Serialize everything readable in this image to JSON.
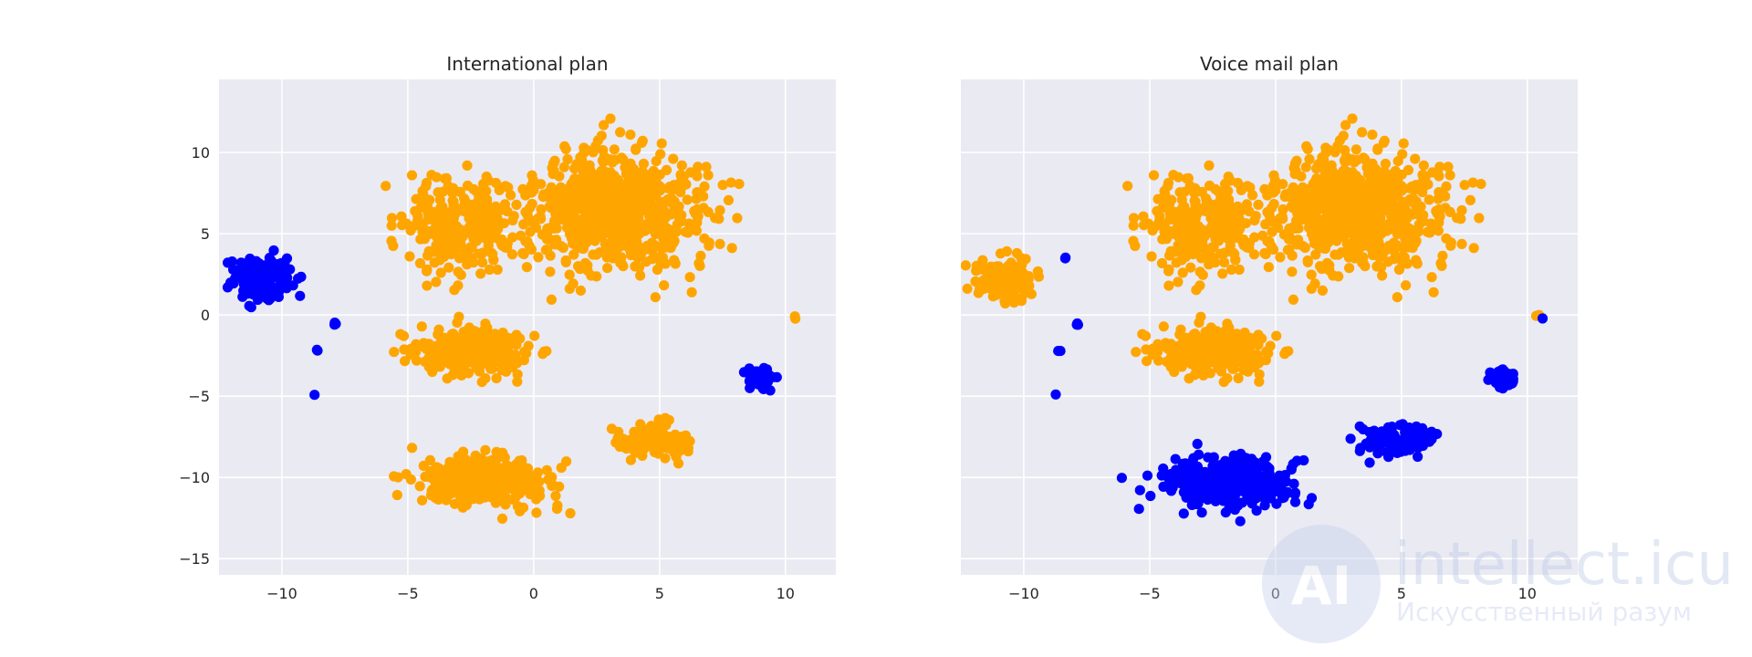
{
  "chart_data": [
    {
      "type": "scatter",
      "title": "International plan",
      "xlim": [
        -12.5,
        12.0
      ],
      "ylim": [
        -16.0,
        14.5
      ],
      "xticks": [
        -10,
        -5,
        0,
        5,
        10
      ],
      "yticks": [
        -15,
        -10,
        -5,
        0,
        5,
        10
      ],
      "xtick_labels": [
        "−10",
        "−5",
        "0",
        "5",
        "10"
      ],
      "ytick_labels": [
        "−15",
        "−10",
        "−5",
        "0",
        "5",
        "10"
      ],
      "grid": true,
      "legend": "none",
      "series": [
        {
          "color": "#FFA500",
          "clusters": [
            {
              "center": [
                3.2,
                6.5
              ],
              "spread": [
                3.5,
                3.5
              ],
              "count": 720
            },
            {
              "center": [
                -2.8,
                5.5
              ],
              "spread": [
                2.2,
                3.0
              ],
              "count": 260
            },
            {
              "center": [
                -2.5,
                -2.2
              ],
              "spread": [
                2.2,
                1.4
              ],
              "count": 340
            },
            {
              "center": [
                -2.0,
                -10.3
              ],
              "spread": [
                2.6,
                1.6
              ],
              "count": 360
            },
            {
              "center": [
                4.8,
                -7.8
              ],
              "spread": [
                1.3,
                1.1
              ],
              "count": 110
            },
            {
              "center": [
                10.4,
                -0.2
              ],
              "spread": [
                0.1,
                0.1
              ],
              "count": 2
            }
          ]
        },
        {
          "color": "#0000FF",
          "clusters": [
            {
              "center": [
                -10.7,
                2.2
              ],
              "spread": [
                1.1,
                1.2
              ],
              "count": 170
            },
            {
              "center": [
                9.0,
                -3.9
              ],
              "spread": [
                0.5,
                0.5
              ],
              "count": 80
            },
            {
              "center": [
                -7.9,
                -0.6
              ],
              "spread": [
                0.1,
                0.2
              ],
              "count": 3
            },
            {
              "center": [
                -8.6,
                -2.2
              ],
              "spread": [
                0.1,
                0.1
              ],
              "count": 2
            },
            {
              "center": [
                -8.7,
                -4.9
              ],
              "spread": [
                0.05,
                0.05
              ],
              "count": 1
            }
          ]
        }
      ]
    },
    {
      "type": "scatter",
      "title": "Voice mail plan",
      "xlim": [
        -12.5,
        12.0
      ],
      "ylim": [
        -16.0,
        14.5
      ],
      "xticks": [
        -10,
        -5,
        0,
        5,
        10
      ],
      "yticks": [
        -15,
        -10,
        -5,
        0,
        5,
        10
      ],
      "xtick_labels": [
        "−10",
        "−5",
        "0",
        "5",
        "10"
      ],
      "ytick_labels": [],
      "grid": true,
      "legend": "none",
      "series": [
        {
          "color": "#FFA500",
          "clusters": [
            {
              "center": [
                3.2,
                6.5
              ],
              "spread": [
                3.5,
                3.5
              ],
              "count": 720
            },
            {
              "center": [
                -2.8,
                5.5
              ],
              "spread": [
                2.2,
                3.0
              ],
              "count": 260
            },
            {
              "center": [
                -2.5,
                -2.2
              ],
              "spread": [
                2.2,
                1.4
              ],
              "count": 340
            },
            {
              "center": [
                -10.7,
                2.2
              ],
              "spread": [
                1.1,
                1.2
              ],
              "count": 170
            },
            {
              "center": [
                10.4,
                -0.1
              ],
              "spread": [
                0.1,
                0.1
              ],
              "count": 2
            }
          ]
        },
        {
          "color": "#0000FF",
          "clusters": [
            {
              "center": [
                -2.0,
                -10.3
              ],
              "spread": [
                2.6,
                1.6
              ],
              "count": 360
            },
            {
              "center": [
                4.8,
                -7.8
              ],
              "spread": [
                1.3,
                1.1
              ],
              "count": 110
            },
            {
              "center": [
                9.0,
                -3.9
              ],
              "spread": [
                0.5,
                0.5
              ],
              "count": 80
            },
            {
              "center": [
                -7.9,
                -0.6
              ],
              "spread": [
                0.1,
                0.2
              ],
              "count": 3
            },
            {
              "center": [
                -8.6,
                -2.2
              ],
              "spread": [
                0.1,
                0.1
              ],
              "count": 2
            },
            {
              "center": [
                -8.7,
                -4.9
              ],
              "spread": [
                0.05,
                0.05
              ],
              "count": 1
            },
            {
              "center": [
                -8.4,
                3.5
              ],
              "spread": [
                0.1,
                0.1
              ],
              "count": 2
            },
            {
              "center": [
                10.6,
                -0.2
              ],
              "spread": [
                0.05,
                0.05
              ],
              "count": 1
            }
          ]
        }
      ]
    }
  ],
  "watermark": {
    "logo_text": "AI",
    "main_text": "intellect.icu",
    "sub_text": "Искусственный разум"
  }
}
